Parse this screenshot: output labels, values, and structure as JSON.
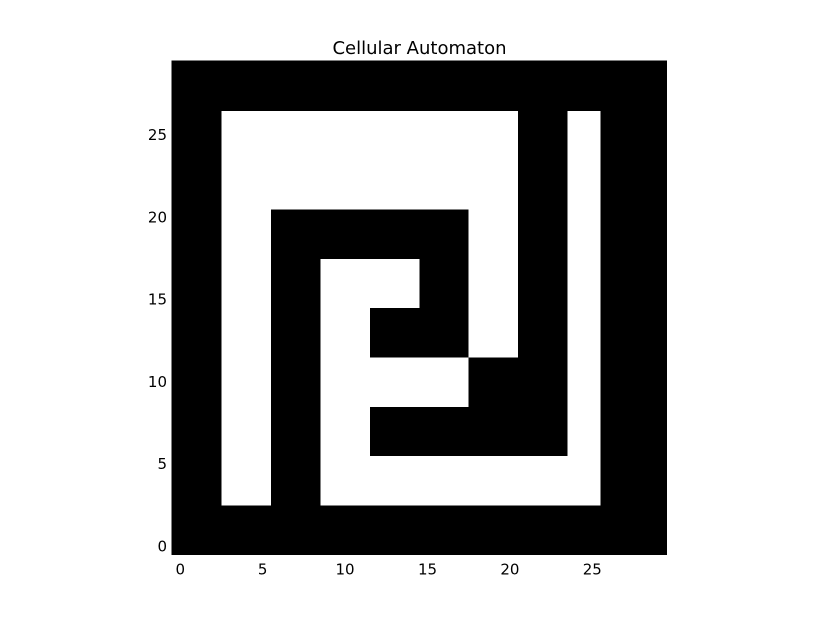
{
  "chart_data": {
    "type": "heatmap",
    "title": "Cellular Automaton",
    "xlabel": "",
    "ylabel": "",
    "grid": false,
    "legend": "none",
    "xlim": [
      -0.5,
      29.5
    ],
    "ylim": [
      29.5,
      -0.5
    ],
    "x_ticks": [
      0,
      5,
      10,
      15,
      20,
      25
    ],
    "y_ticks": [
      0,
      5,
      10,
      15,
      20,
      25
    ],
    "x_tick_labels": [
      "0",
      "5",
      "10",
      "15",
      "20",
      "25"
    ],
    "y_tick_labels": [
      "0",
      "5",
      "10",
      "15",
      "20",
      "25"
    ],
    "colormap": {
      "0": "#ffffff",
      "1": "#000000"
    },
    "grid_rows": [
      "111111111111111111111111111111",
      "111111111111111111111111111111",
      "111111111111111111111111111111",
      "111000111000000000000000001111",
      "111000111000000000000000001111",
      "111000111000000000000000001111",
      "111000111000111111111111001111",
      "111000111000111111111111001111",
      "111000111000111111111111001111",
      "111000111000000000111111001111",
      "111000111000000000111111001111",
      "111000111000000000111111001111",
      "111000111000111111000111001111",
      "111000111000111111000111001111",
      "111000111000111111000111001111",
      "111000111000000111000111001111",
      "111000111000000111000111001111",
      "111000111000000111000111001111",
      "111000111111111111000111001111",
      "111000111111111111000111001111",
      "111000111111111111000111001111",
      "111000000000000000000111001111",
      "111000000000000000000111001111",
      "111000000000000000000111001111",
      "111000000000000000000111001111",
      "111000000000000000000111001111",
      "111000000000000000000111001111",
      "111111111111111111111111111111",
      "111111111111111111111111111111",
      "111111111111111111111111111111"
    ]
  }
}
